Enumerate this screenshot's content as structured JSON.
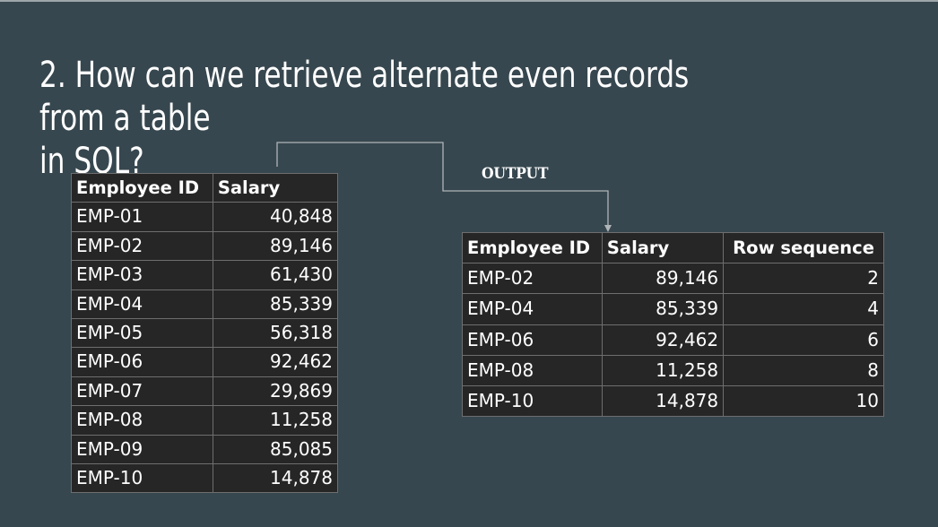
{
  "slide": {
    "title_line1": "2. How can we retrieve alternate even records from a table",
    "title_line2": "in SQL?",
    "output_label": "OUTPUT"
  },
  "input_table": {
    "headers": [
      "Employee ID",
      "Salary"
    ],
    "rows": [
      [
        "EMP-01",
        "40,848"
      ],
      [
        "EMP-02",
        "89,146"
      ],
      [
        "EMP-03",
        "61,430"
      ],
      [
        "EMP-04",
        "85,339"
      ],
      [
        "EMP-05",
        "56,318"
      ],
      [
        "EMP-06",
        "92,462"
      ],
      [
        "EMP-07",
        "29,869"
      ],
      [
        "EMP-08",
        "11,258"
      ],
      [
        "EMP-09",
        "85,085"
      ],
      [
        "EMP-10",
        "14,878"
      ]
    ]
  },
  "output_table": {
    "headers": [
      "Employee ID",
      "Salary",
      "Row sequence"
    ],
    "rows": [
      [
        "EMP-02",
        "89,146",
        "2"
      ],
      [
        "EMP-04",
        "85,339",
        "4"
      ],
      [
        "EMP-06",
        "92,462",
        "6"
      ],
      [
        "EMP-08",
        "11,258",
        "8"
      ],
      [
        "EMP-10",
        "14,878",
        "10"
      ]
    ]
  },
  "colors": {
    "background": "#37474f",
    "table_background": "#262626",
    "connector": "#b0b5b8"
  }
}
